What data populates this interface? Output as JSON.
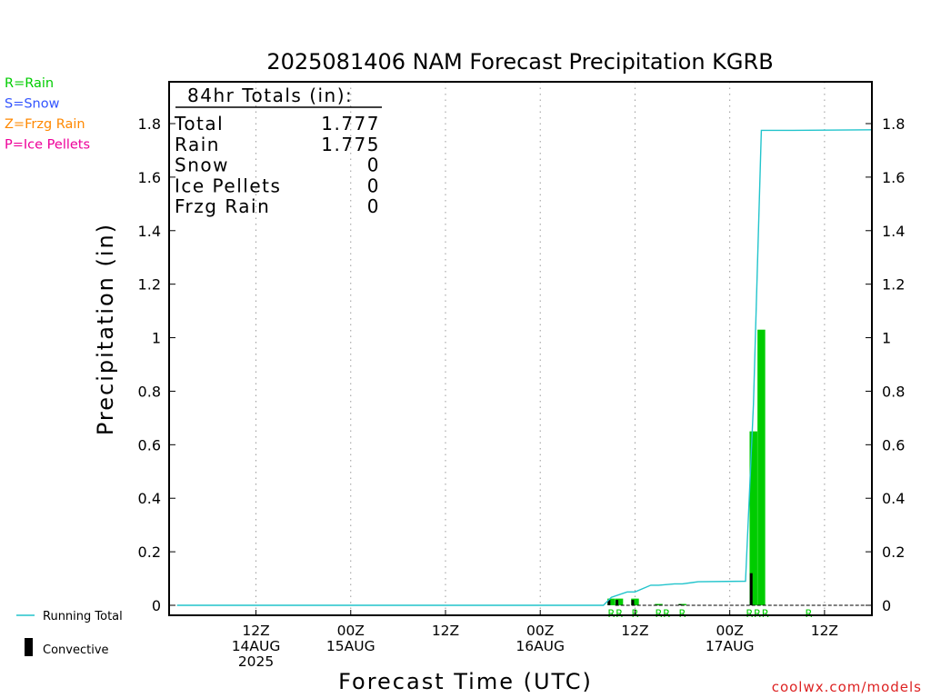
{
  "chart_data": {
    "type": "bar",
    "title": "2025081406 NAM Forecast Precipitation KGRB",
    "xlabel": "Forecast Time (UTC)",
    "ylabel": "Precipitation (in)",
    "ylim": [
      0,
      1.94
    ],
    "y_ticks": [
      0,
      0.2,
      0.4,
      0.6,
      0.8,
      1,
      1.2,
      1.4,
      1.6,
      1.8
    ],
    "y_tick_labels": [
      "0",
      "0.2",
      "0.4",
      "0.6",
      "0.8",
      "1",
      "1.2",
      "1.4",
      "1.6",
      "1.8"
    ],
    "x_range_hours": [
      -5,
      84
    ],
    "grid": true,
    "x_ticks": [
      {
        "hour": 6,
        "lines": [
          "12Z",
          "14AUG",
          "2025"
        ]
      },
      {
        "hour": 18,
        "lines": [
          "00Z",
          "15AUG"
        ]
      },
      {
        "hour": 30,
        "lines": [
          "12Z"
        ]
      },
      {
        "hour": 42,
        "lines": [
          "00Z",
          "16AUG"
        ]
      },
      {
        "hour": 54,
        "lines": [
          "12Z"
        ]
      },
      {
        "hour": 66,
        "lines": [
          "00Z",
          "17AUG"
        ]
      },
      {
        "hour": 78,
        "lines": [
          "12Z"
        ]
      }
    ],
    "precip_legend": [
      {
        "label": "R=Rain",
        "color": "#00cc00"
      },
      {
        "label": "S=Snow",
        "color": "#3355ff"
      },
      {
        "label": "Z=Frzg Rain",
        "color": "#ff8800"
      },
      {
        "label": "P=Ice Pellets",
        "color": "#ee0099"
      }
    ],
    "line_legend": {
      "running_total": "Running Total",
      "convective": "Convective"
    },
    "totals": {
      "header": "84hr Totals (in):",
      "rows": [
        {
          "label": "Total",
          "value": "1.777"
        },
        {
          "label": "Rain",
          "value": "1.775"
        },
        {
          "label": "Snow",
          "value": "0"
        },
        {
          "label": "Ice Pellets",
          "value": "0"
        },
        {
          "label": "Frzg Rain",
          "value": "0"
        }
      ]
    },
    "interval_precip": {
      "x_hours": [
        51,
        52,
        54,
        57,
        60,
        69,
        70
      ],
      "values": [
        0.025,
        0.025,
        0.025,
        0.005,
        0.005,
        0.65,
        1.03
      ],
      "types": [
        "R",
        "R",
        "R",
        "R",
        "R",
        "R",
        "R"
      ]
    },
    "convective_precip": {
      "x_hours": [
        51,
        52,
        54,
        57,
        60,
        69,
        70
      ],
      "values": [
        0.02,
        0.02,
        0.02,
        0.002,
        0.004,
        0.12,
        0.0
      ]
    },
    "type_marks": [
      {
        "hour": 51,
        "text": "R"
      },
      {
        "hour": 52,
        "text": "R"
      },
      {
        "hour": 54,
        "text": "R"
      },
      {
        "hour": 57,
        "text": "R"
      },
      {
        "hour": 58,
        "text": "R"
      },
      {
        "hour": 60,
        "text": "R"
      },
      {
        "hour": 68.5,
        "text": "R"
      },
      {
        "hour": 69.5,
        "text": "R"
      },
      {
        "hour": 70.5,
        "text": "R"
      },
      {
        "hour": 76,
        "text": "R"
      }
    ],
    "running_total": {
      "x_hours": [
        -4,
        50,
        51,
        53,
        54,
        56,
        57,
        59,
        60,
        62,
        68,
        69,
        70,
        74,
        84
      ],
      "values": [
        0,
        0,
        0.03,
        0.05,
        0.05,
        0.075,
        0.075,
        0.08,
        0.08,
        0.088,
        0.09,
        0.75,
        1.775,
        1.775,
        1.777
      ]
    },
    "colors": {
      "rain": "#00cc00",
      "convective": "#000000",
      "running_total": "#22c4cc",
      "grid": "#999999",
      "credit": "#dd2222"
    }
  },
  "credit": "coolwx.com/models"
}
